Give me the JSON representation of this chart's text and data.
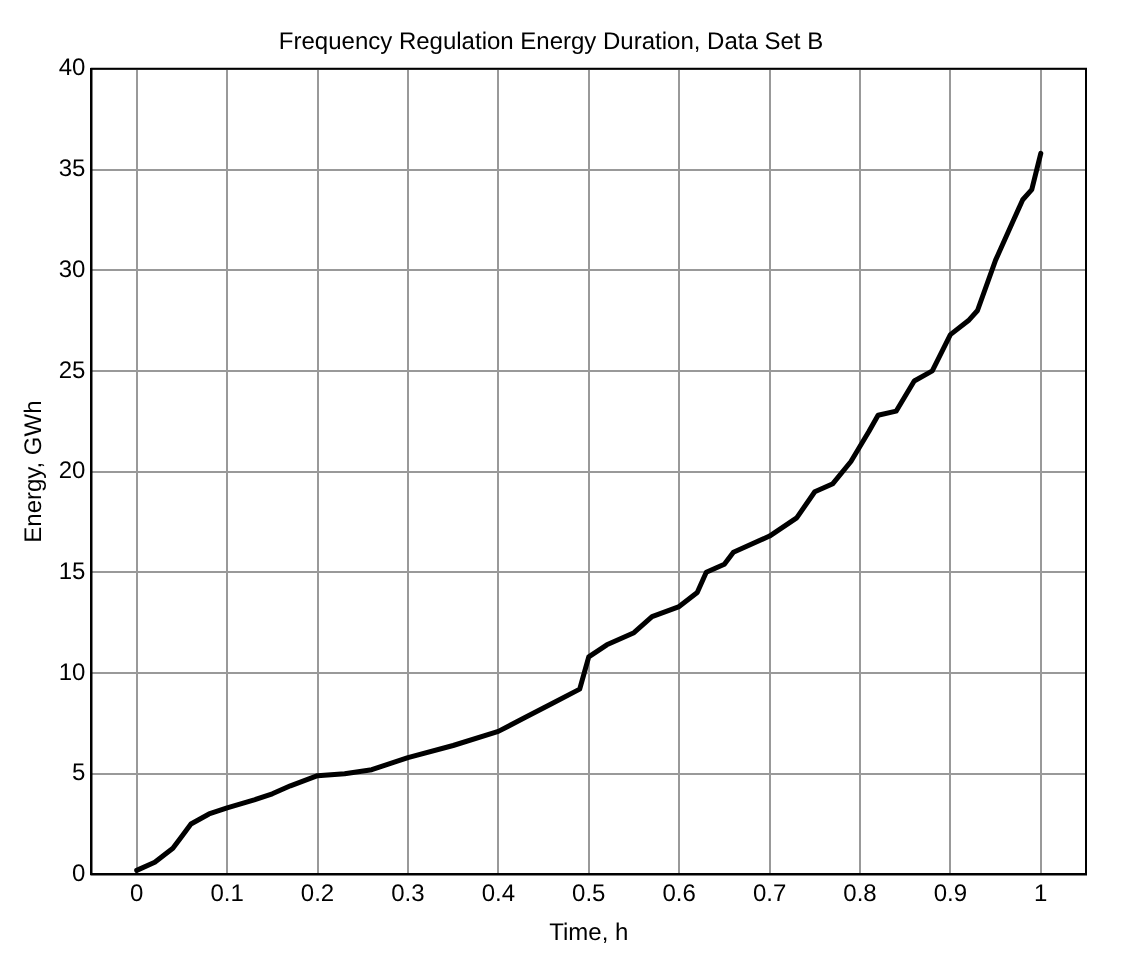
{
  "chart_data": {
    "type": "line",
    "title": "Frequency Regulation Energy Duration, Data Set B",
    "xlabel": "Time, h",
    "ylabel": "Energy, GWh",
    "series": [
      {
        "color": "#000000",
        "x": [
          0,
          0.02,
          0.04,
          0.05,
          0.06,
          0.08,
          0.1,
          0.13,
          0.15,
          0.17,
          0.2,
          0.23,
          0.26,
          0.3,
          0.35,
          0.4,
          0.43,
          0.46,
          0.49,
          0.495,
          0.5,
          0.52,
          0.55,
          0.57,
          0.6,
          0.62,
          0.63,
          0.65,
          0.66,
          0.7,
          0.73,
          0.75,
          0.77,
          0.79,
          0.81,
          0.82,
          0.84,
          0.86,
          0.88,
          0.9,
          0.92,
          0.93,
          0.95,
          0.97,
          0.98,
          0.99,
          1.0
        ],
        "values": [
          0.2,
          0.6,
          1.3,
          1.9,
          2.5,
          3.0,
          3.3,
          3.7,
          4.0,
          4.4,
          4.9,
          5.0,
          5.2,
          5.8,
          6.4,
          7.1,
          7.8,
          8.5,
          9.2,
          10.0,
          10.8,
          11.4,
          12.0,
          12.8,
          13.3,
          14.0,
          15.0,
          15.4,
          16.0,
          16.8,
          17.7,
          19.0,
          19.4,
          20.5,
          22.0,
          22.8,
          23.0,
          24.5,
          25.0,
          26.8,
          27.5,
          28.0,
          30.5,
          32.5,
          33.5,
          34.0,
          35.8
        ]
      }
    ],
    "xlim": [
      -0.05,
      1.05
    ],
    "xticks": [
      0,
      0.1,
      0.2,
      0.3,
      0.4,
      0.5,
      0.6,
      0.7,
      0.8,
      0.9,
      1
    ],
    "ylim": [
      0,
      40
    ],
    "yticks": [
      0,
      5,
      10,
      15,
      20,
      25,
      30,
      35,
      40
    ],
    "grid": true,
    "marker": "none",
    "line_style": "solid",
    "legend": false
  }
}
